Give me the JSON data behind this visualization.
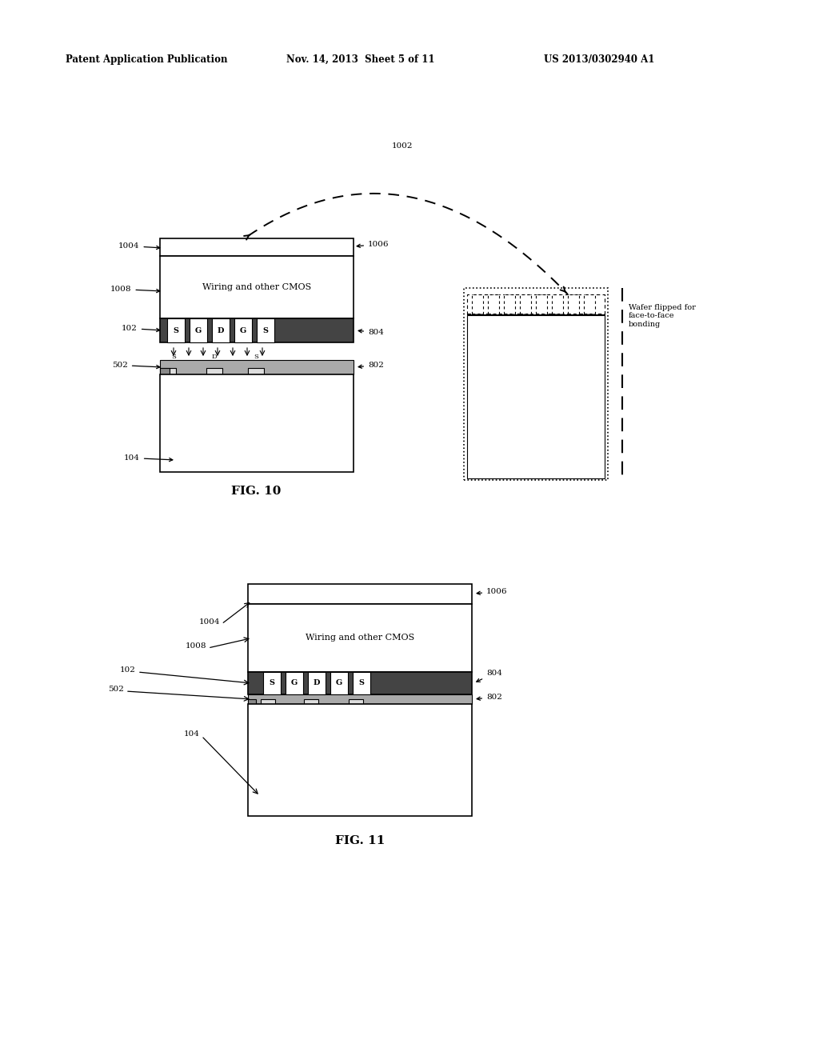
{
  "bg_color": "#ffffff",
  "header_left": "Patent Application Publication",
  "header_mid": "Nov. 14, 2013  Sheet 5 of 11",
  "header_right": "US 2013/0302940 A1",
  "fig10_label": "FIG. 10",
  "fig11_label": "FIG. 11",
  "fig10_caption": "Wafer flipped for\nface-to-face\nbonding"
}
